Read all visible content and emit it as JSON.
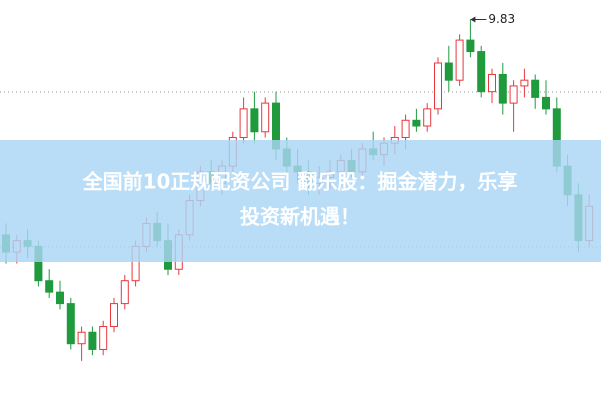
{
  "chart_data": {
    "type": "candlestick",
    "title_lines": [
      "全国前10正规配资公司 翻乐股：掘金潜力，乐享",
      "投资新机遇！"
    ],
    "annotation": {
      "value": 9.83
    },
    "up_color": "#e8383d",
    "down_color": "#1f9a3c",
    "ylim": [
      6.5,
      10.0
    ],
    "ohlc": [
      [
        7.95,
        8.05,
        7.7,
        7.8
      ],
      [
        7.8,
        7.95,
        7.7,
        7.9
      ],
      [
        7.9,
        8.0,
        7.75,
        7.85
      ],
      [
        7.85,
        7.9,
        7.5,
        7.55
      ],
      [
        7.55,
        7.65,
        7.4,
        7.45
      ],
      [
        7.45,
        7.55,
        7.3,
        7.35
      ],
      [
        7.35,
        7.4,
        6.95,
        7.0
      ],
      [
        7.0,
        7.15,
        6.85,
        7.1
      ],
      [
        7.1,
        7.15,
        6.9,
        6.95
      ],
      [
        6.95,
        7.2,
        6.9,
        7.15
      ],
      [
        7.15,
        7.4,
        7.1,
        7.35
      ],
      [
        7.35,
        7.6,
        7.3,
        7.55
      ],
      [
        7.55,
        7.9,
        7.5,
        7.85
      ],
      [
        7.85,
        8.1,
        7.8,
        8.05
      ],
      [
        8.05,
        8.15,
        7.85,
        7.9
      ],
      [
        7.9,
        8.05,
        7.6,
        7.65
      ],
      [
        7.65,
        8.0,
        7.6,
        7.95
      ],
      [
        7.95,
        8.3,
        7.9,
        8.25
      ],
      [
        8.25,
        8.55,
        8.2,
        8.5
      ],
      [
        8.5,
        8.6,
        8.35,
        8.4
      ],
      [
        8.4,
        8.6,
        8.3,
        8.55
      ],
      [
        8.55,
        8.85,
        8.5,
        8.8
      ],
      [
        8.8,
        9.15,
        8.75,
        9.05
      ],
      [
        9.05,
        9.2,
        8.75,
        8.85
      ],
      [
        8.85,
        9.15,
        8.8,
        9.1
      ],
      [
        9.1,
        9.2,
        8.6,
        8.7
      ],
      [
        8.7,
        8.8,
        8.45,
        8.55
      ],
      [
        8.55,
        8.7,
        8.4,
        8.5
      ],
      [
        8.5,
        8.6,
        8.3,
        8.4
      ],
      [
        8.4,
        8.55,
        8.3,
        8.45
      ],
      [
        8.45,
        8.6,
        8.35,
        8.5
      ],
      [
        8.5,
        8.65,
        8.4,
        8.6
      ],
      [
        8.6,
        8.7,
        8.45,
        8.5
      ],
      [
        8.5,
        8.75,
        8.45,
        8.7
      ],
      [
        8.7,
        8.85,
        8.6,
        8.65
      ],
      [
        8.65,
        8.8,
        8.55,
        8.75
      ],
      [
        8.75,
        8.9,
        8.65,
        8.8
      ],
      [
        8.8,
        9.0,
        8.7,
        8.95
      ],
      [
        8.95,
        9.05,
        8.85,
        8.9
      ],
      [
        8.9,
        9.1,
        8.85,
        9.05
      ],
      [
        9.05,
        9.5,
        9.0,
        9.45
      ],
      [
        9.45,
        9.6,
        9.2,
        9.3
      ],
      [
        9.3,
        9.7,
        9.25,
        9.65
      ],
      [
        9.65,
        9.83,
        9.5,
        9.55
      ],
      [
        9.55,
        9.6,
        9.15,
        9.2
      ],
      [
        9.2,
        9.4,
        9.1,
        9.35
      ],
      [
        9.35,
        9.45,
        9.0,
        9.1
      ],
      [
        9.1,
        9.3,
        8.85,
        9.25
      ],
      [
        9.25,
        9.4,
        9.15,
        9.3
      ],
      [
        9.3,
        9.35,
        9.05,
        9.15
      ],
      [
        9.15,
        9.3,
        9.0,
        9.05
      ],
      [
        9.05,
        9.15,
        8.5,
        8.55
      ],
      [
        8.55,
        8.65,
        8.2,
        8.3
      ],
      [
        8.3,
        8.4,
        7.8,
        7.9
      ],
      [
        7.9,
        8.3,
        7.85,
        8.2
      ]
    ]
  }
}
